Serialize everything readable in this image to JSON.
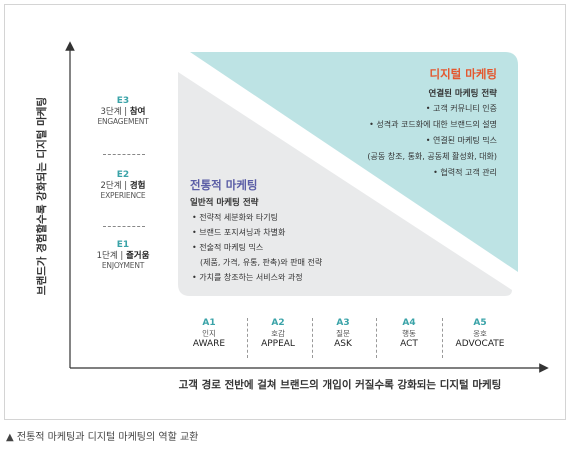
{
  "y_axis_label": "브랜드가 경험할수록 강화되는 디지털 마케팅",
  "x_axis_label": "고객 경로 전반에 걸쳐 브랜드의 개입이 커질수록 강화되는 디지털 마케팅",
  "e_stages": [
    {
      "code": "E3",
      "step": "3단계",
      "name": "참여",
      "en": "ENGAGEMENT"
    },
    {
      "code": "E2",
      "step": "2단계",
      "name": "경험",
      "en": "EXPERIENCE"
    },
    {
      "code": "E1",
      "step": "1단계",
      "name": "즐거움",
      "en": "ENJOYMENT"
    }
  ],
  "a_stages": [
    {
      "code": "A1",
      "ko": "인지",
      "en": "AWARE"
    },
    {
      "code": "A2",
      "ko": "호감",
      "en": "APPEAL"
    },
    {
      "code": "A3",
      "ko": "질문",
      "en": "ASK"
    },
    {
      "code": "A4",
      "ko": "행동",
      "en": "ACT"
    },
    {
      "code": "A5",
      "ko": "옹호",
      "en": "ADVOCATE"
    }
  ],
  "traditional": {
    "title": "전통적 마케팅",
    "subtitle": "일반적 마케팅 전략",
    "items": [
      "• 전략적 세분화와 타기팅",
      "• 브랜드 포지셔닝과 차별화",
      "• 전술적 마케팅 믹스",
      "(제품, 가격, 유통, 판촉)와 판매 전략",
      "• 가치를 창조하는 서비스와 과정"
    ]
  },
  "digital": {
    "title": "디지털 마케팅",
    "subtitle": "연결된 마케팅 전략",
    "items": [
      "• 고객 커뮤니티 인증",
      "• 성격과 코드화에 대한 브랜드의 설명",
      "• 연결된 마케팅 믹스",
      "(공동 창조, 통화, 공동체 활성화, 대화)",
      "• 협력적 고객 관리"
    ]
  },
  "caption": "▲ 전통적 마케팅과 디지털 마케팅의 역할 교환",
  "colors": {
    "traditional_panel": "#e9eaeb",
    "digital_panel": "#bde3e4",
    "traditional_title": "#5b5ea6",
    "digital_title": "#e4572e",
    "stage_code": "#3aa3a8",
    "axis": "#333333"
  }
}
